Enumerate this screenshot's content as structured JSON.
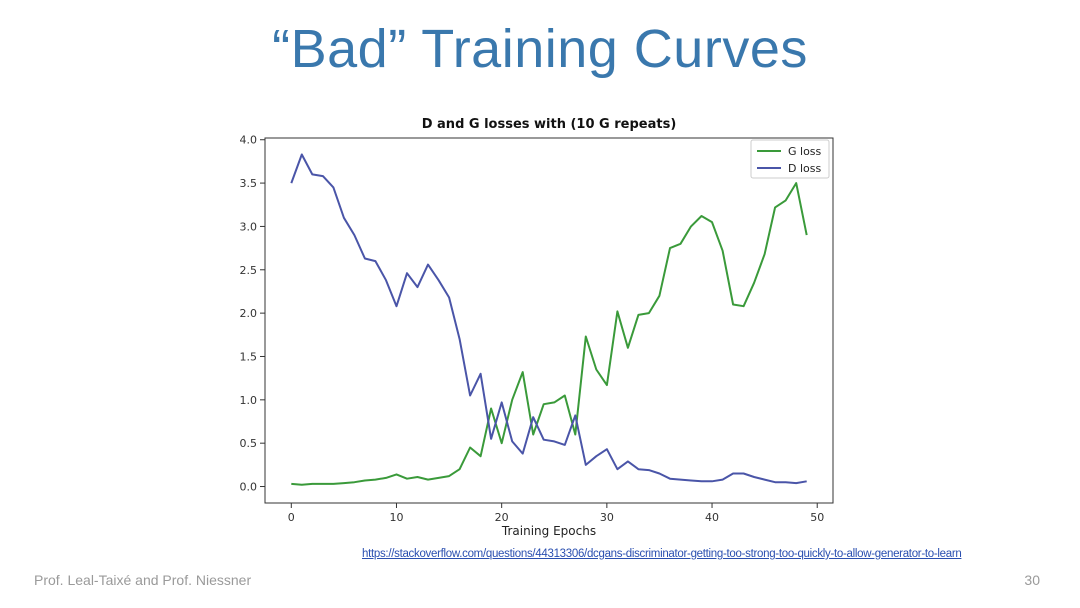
{
  "slide": {
    "title": "“Bad” Training Curves",
    "source_link": "https://stackoverflow.com/questions/44313306/dcgans-discriminator-getting-too-strong-too-quickly-to-allow-generator-to-learn",
    "footer": "Prof. Leal-Taixé and Prof. Niessner",
    "page_number": "30"
  },
  "chart_data": {
    "type": "line",
    "title": "D and G losses with (10 G repeats)",
    "xlabel": "Training Epochs",
    "ylabel": "",
    "xlim": [
      -2.5,
      51.5
    ],
    "ylim": [
      -0.19,
      4.02
    ],
    "xticks": [
      0,
      10,
      20,
      30,
      40,
      50
    ],
    "yticks": [
      0.0,
      0.5,
      1.0,
      1.5,
      2.0,
      2.5,
      3.0,
      3.5,
      4.0
    ],
    "ytick_labels": [
      "0.0",
      "0.5",
      "1.0",
      "1.5",
      "2.0",
      "2.5",
      "3.0",
      "3.5",
      "4.0"
    ],
    "legend_position": "top-right",
    "x": [
      0,
      1,
      2,
      3,
      4,
      5,
      6,
      7,
      8,
      9,
      10,
      11,
      12,
      13,
      14,
      15,
      16,
      17,
      18,
      19,
      20,
      21,
      22,
      23,
      24,
      25,
      26,
      27,
      28,
      29,
      30,
      31,
      32,
      33,
      34,
      35,
      36,
      37,
      38,
      39,
      40,
      41,
      42,
      43,
      44,
      45,
      46,
      47,
      48,
      49
    ],
    "series": [
      {
        "name": "G loss",
        "color": "#3a9a3a",
        "values": [
          0.03,
          0.02,
          0.03,
          0.03,
          0.03,
          0.04,
          0.05,
          0.07,
          0.08,
          0.1,
          0.14,
          0.09,
          0.11,
          0.08,
          0.1,
          0.12,
          0.2,
          0.45,
          0.35,
          0.9,
          0.5,
          1.0,
          1.32,
          0.6,
          0.95,
          0.97,
          1.05,
          0.6,
          1.73,
          1.35,
          1.17,
          2.02,
          1.6,
          1.98,
          2.0,
          2.2,
          2.75,
          2.8,
          3.0,
          3.12,
          3.05,
          2.72,
          2.1,
          2.08,
          2.35,
          2.68,
          3.22,
          3.3,
          3.5,
          2.9
        ]
      },
      {
        "name": "D loss",
        "color": "#4a55a8",
        "values": [
          3.5,
          3.83,
          3.6,
          3.58,
          3.45,
          3.1,
          2.9,
          2.63,
          2.6,
          2.38,
          2.08,
          2.46,
          2.3,
          2.56,
          2.38,
          2.18,
          1.7,
          1.05,
          1.3,
          0.55,
          0.97,
          0.52,
          0.38,
          0.8,
          0.54,
          0.52,
          0.48,
          0.82,
          0.25,
          0.35,
          0.43,
          0.2,
          0.29,
          0.2,
          0.19,
          0.15,
          0.09,
          0.08,
          0.07,
          0.06,
          0.06,
          0.08,
          0.15,
          0.15,
          0.11,
          0.08,
          0.05,
          0.05,
          0.04,
          0.06
        ]
      }
    ]
  }
}
